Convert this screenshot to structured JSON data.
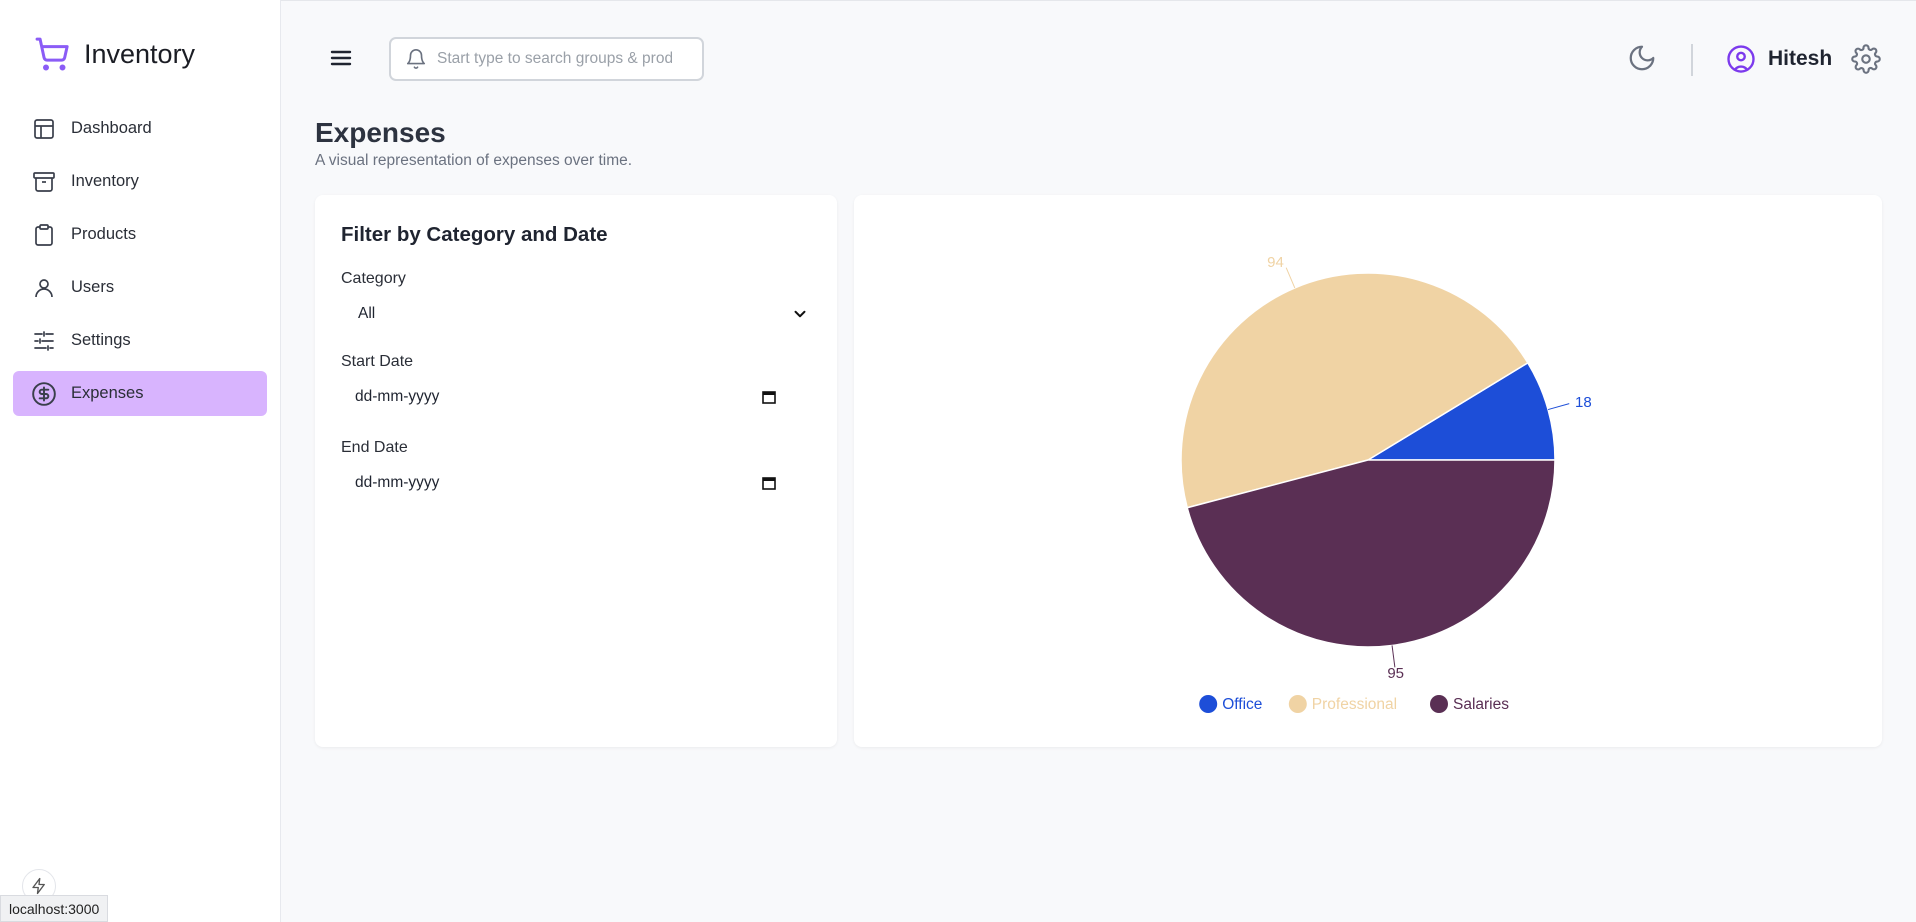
{
  "app": {
    "title": "Inventory"
  },
  "sidebar": {
    "items": [
      {
        "label": "Dashboard",
        "icon": "layout-icon",
        "active": false
      },
      {
        "label": "Inventory",
        "icon": "archive-icon",
        "active": false
      },
      {
        "label": "Products",
        "icon": "clipboard-icon",
        "active": false
      },
      {
        "label": "Users",
        "icon": "user-icon",
        "active": false
      },
      {
        "label": "Settings",
        "icon": "sliders-icon",
        "active": false
      },
      {
        "label": "Expenses",
        "icon": "dollar-circle-icon",
        "active": true
      }
    ]
  },
  "header": {
    "search_placeholder": "Start type to search groups & products",
    "user_name": "Hitesh"
  },
  "page": {
    "title": "Expenses",
    "subtitle": "A visual representation of expenses over time."
  },
  "filter": {
    "title": "Filter by Category and Date",
    "category_label": "Category",
    "category_value": "All",
    "start_label": "Start Date",
    "start_value": "dd-mm-yyyy",
    "end_label": "End Date",
    "end_value": "dd-mm-yyyy"
  },
  "status_bar": {
    "url": "localhost:3000"
  },
  "colors": {
    "accent": "#d8b4fe",
    "brand": "#8b5cf6",
    "office": "#1d4ed8",
    "professional": "#f0d3a4",
    "salaries": "#5a2f54"
  },
  "chart_data": {
    "type": "pie",
    "categories": [
      "Office",
      "Professional",
      "Salaries"
    ],
    "values": [
      18,
      94,
      95
    ],
    "colors": [
      "#1d4ed8",
      "#f0d3a4",
      "#5a2f54"
    ],
    "legend": "bottom"
  }
}
